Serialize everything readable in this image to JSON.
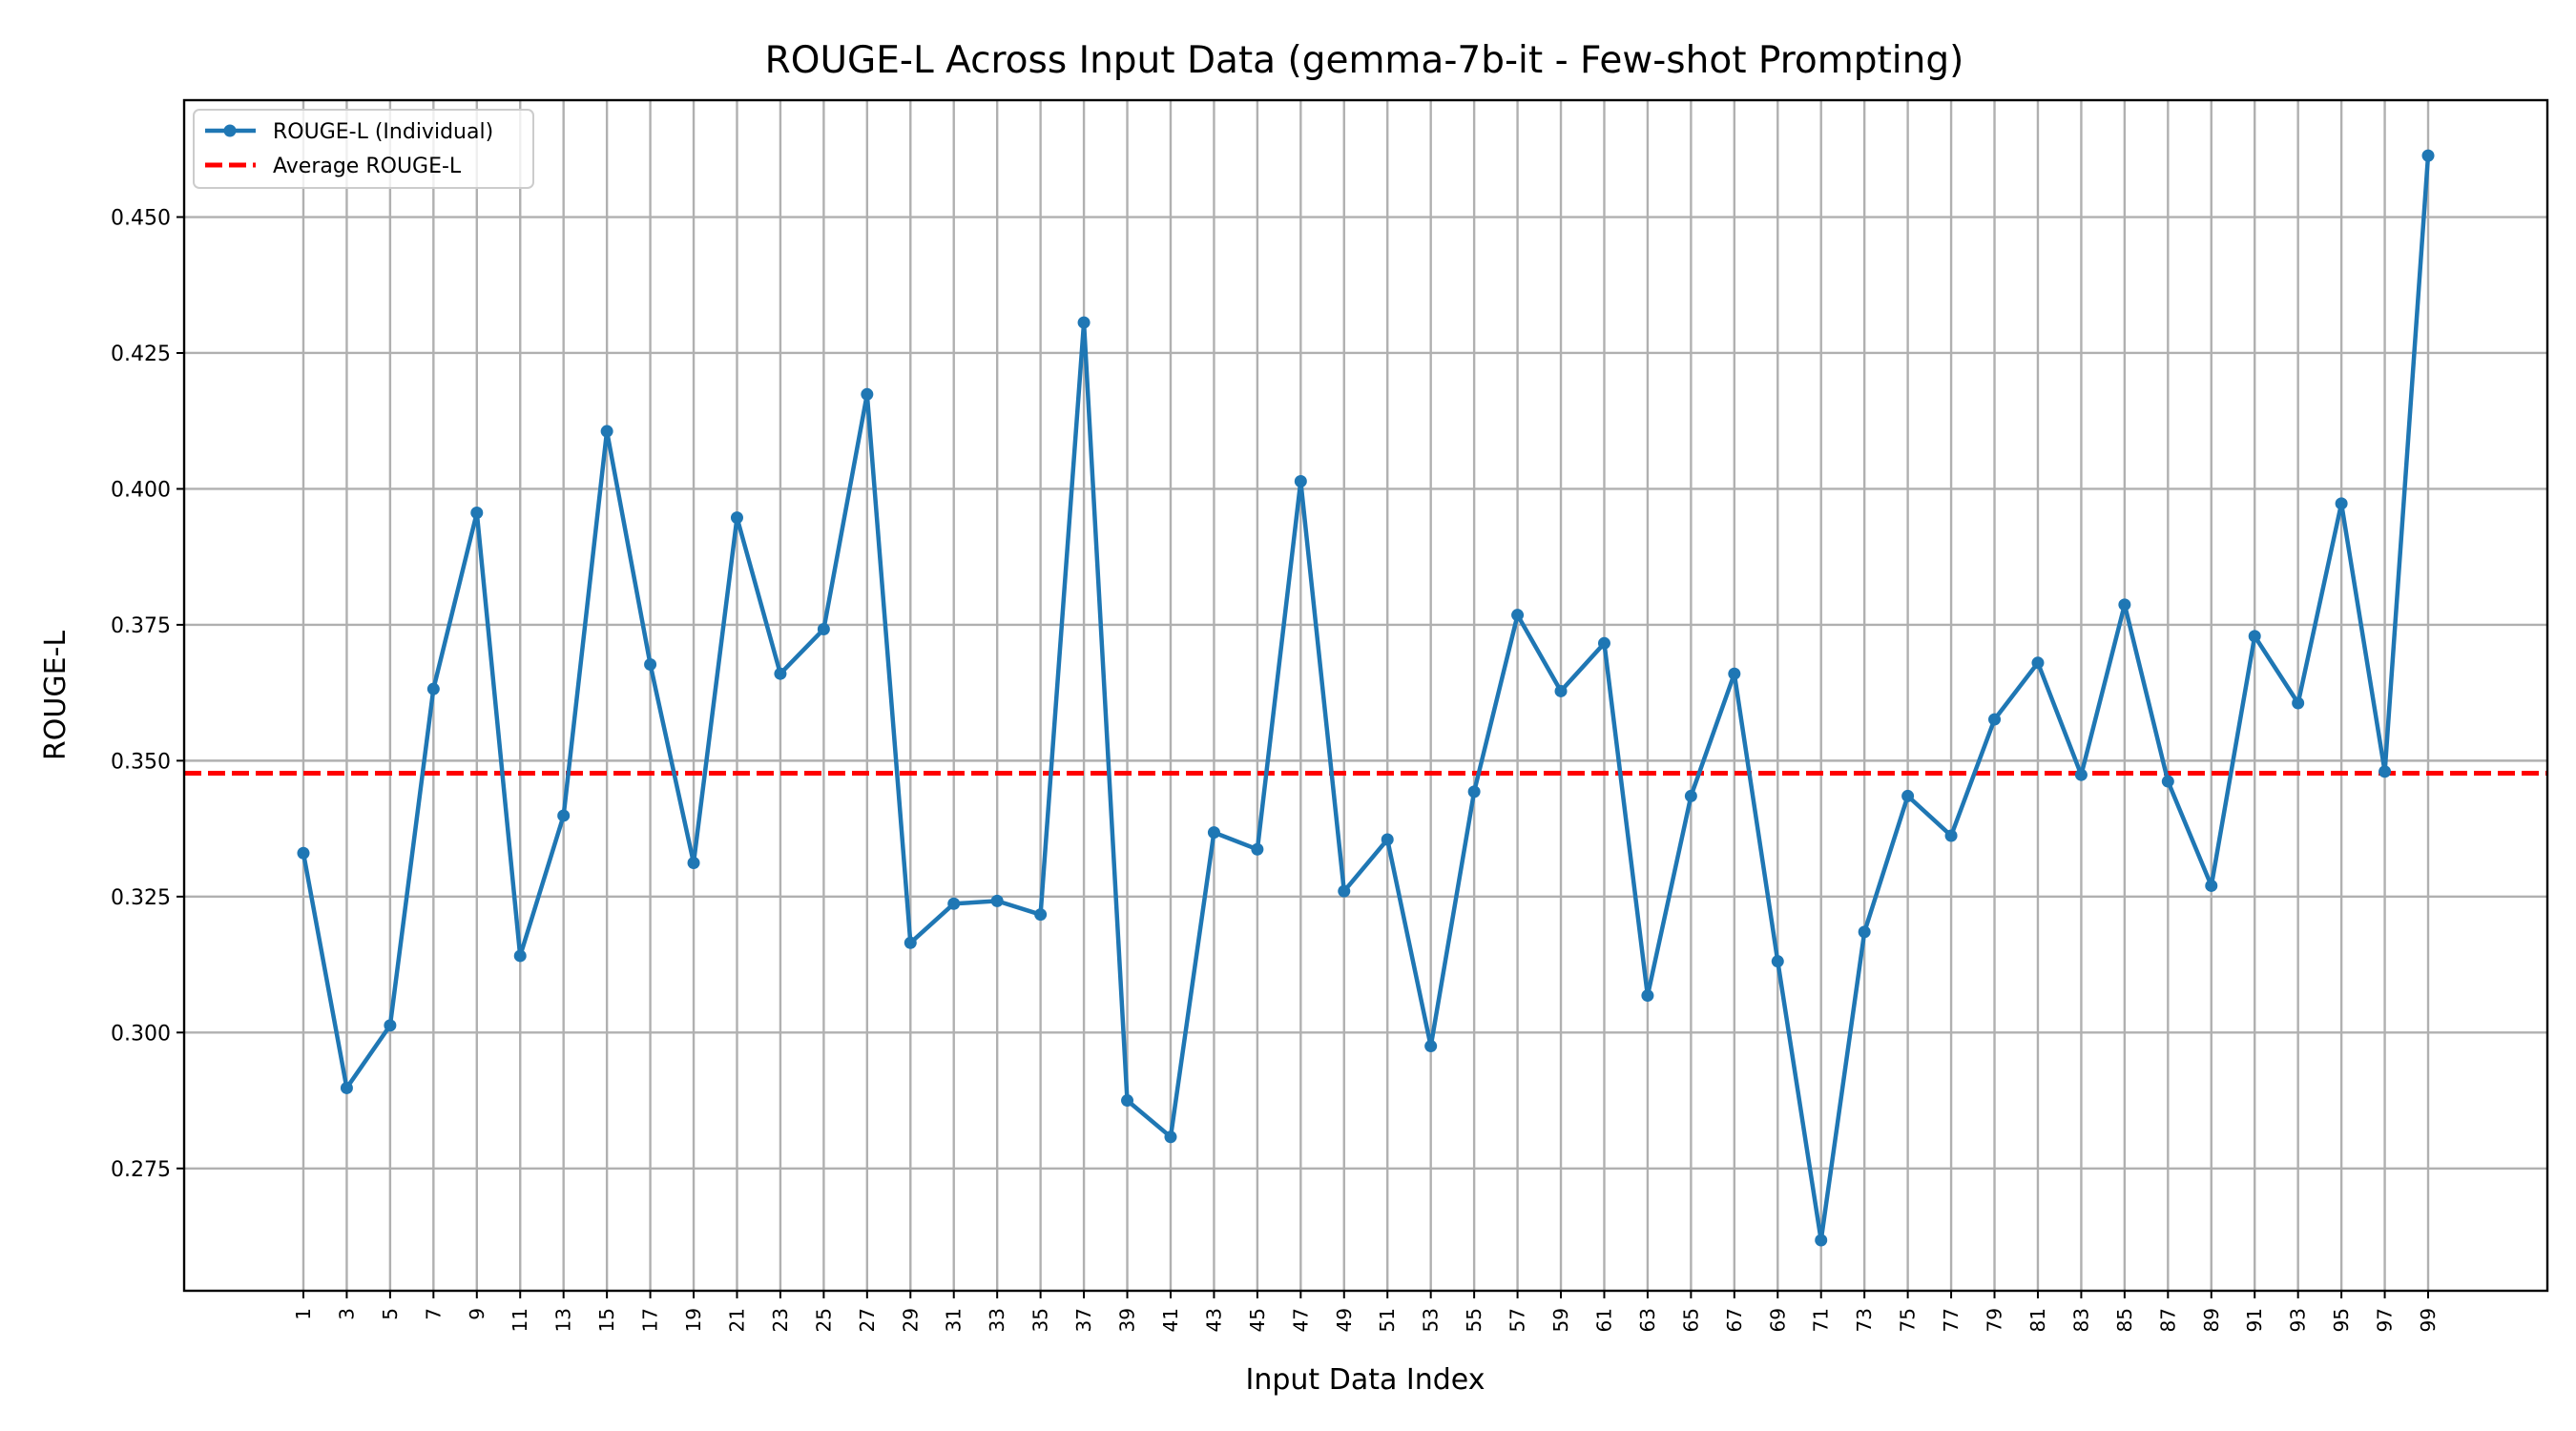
{
  "chart_data": {
    "type": "line",
    "title": "ROUGE-L Across Input Data (gemma-7b-it - Few-shot Prompting)",
    "xlabel": "Input Data Index",
    "ylabel": "ROUGE-L",
    "x": [
      1,
      3,
      5,
      7,
      9,
      11,
      13,
      15,
      17,
      19,
      21,
      23,
      25,
      27,
      29,
      31,
      33,
      35,
      37,
      39,
      41,
      43,
      45,
      47,
      49,
      51,
      53,
      55,
      57,
      59,
      61,
      63,
      65,
      67,
      69,
      71,
      73,
      75,
      77,
      79,
      81,
      83,
      85,
      87,
      89,
      91,
      93,
      95,
      97,
      99
    ],
    "xticks": [
      "1",
      "3",
      "5",
      "7",
      "9",
      "11",
      "13",
      "15",
      "17",
      "19",
      "21",
      "23",
      "25",
      "27",
      "29",
      "31",
      "33",
      "35",
      "37",
      "39",
      "41",
      "43",
      "45",
      "47",
      "49",
      "51",
      "53",
      "55",
      "57",
      "59",
      "61",
      "63",
      "65",
      "67",
      "69",
      "71",
      "73",
      "75",
      "77",
      "79",
      "81",
      "83",
      "85",
      "87",
      "89",
      "91",
      "93",
      "95",
      "97",
      "99"
    ],
    "xlim": [
      -4.5,
      104.5
    ],
    "yticks": [
      "0.275",
      "0.300",
      "0.325",
      "0.350",
      "0.375",
      "0.400",
      "0.425",
      "0.450"
    ],
    "ytick_values": [
      0.275,
      0.3,
      0.325,
      0.35,
      0.375,
      0.4,
      0.425,
      0.45
    ],
    "ylim": [
      0.2525,
      0.4715
    ],
    "grid": true,
    "legend_position": "upper-left",
    "series": [
      {
        "name": "ROUGE-L (Individual)",
        "color": "#1f77b4",
        "style": "solid-with-markers",
        "values": [
          0.333,
          0.2898,
          0.3013,
          0.3632,
          0.3956,
          0.3141,
          0.3399,
          0.4106,
          0.3677,
          0.3312,
          0.3947,
          0.366,
          0.3742,
          0.4174,
          0.3165,
          0.3237,
          0.3242,
          0.3217,
          0.4306,
          0.2875,
          0.2808,
          0.3368,
          0.3337,
          0.4014,
          0.326,
          0.3355,
          0.2975,
          0.3443,
          0.3768,
          0.3628,
          0.3716,
          0.3068,
          0.3435,
          0.366,
          0.3131,
          0.2618,
          0.3185,
          0.3435,
          0.3362,
          0.3576,
          0.368,
          0.3474,
          0.3787,
          0.3462,
          0.327,
          0.3729,
          0.3606,
          0.3973,
          0.348,
          0.4613
        ]
      },
      {
        "name": "Average ROUGE-L",
        "color": "#ff0000",
        "style": "dashed",
        "value": 0.3477
      }
    ]
  }
}
